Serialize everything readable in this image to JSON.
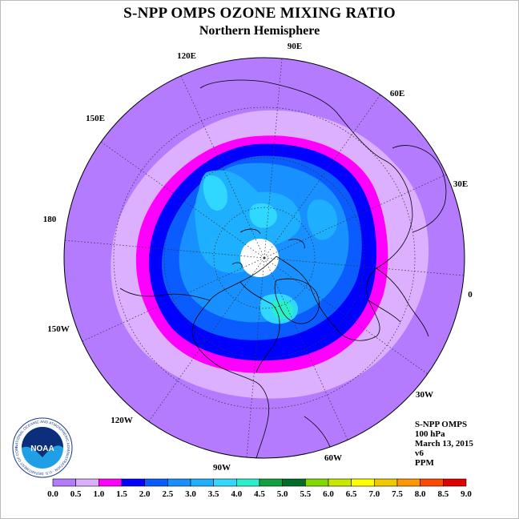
{
  "title": "S-NPP OMPS OZONE MIXING RATIO",
  "subtitle": "Northern Hemisphere",
  "longitude_labels": [
    "90E",
    "60E",
    "30E",
    "0",
    "30W",
    "60W",
    "90W",
    "120W",
    "150W",
    "180",
    "150E",
    "120E"
  ],
  "info": {
    "instrument": "S-NPP OMPS",
    "level": "100 hPa",
    "date": "March 13, 2015",
    "version": "v6",
    "units": "PPM"
  },
  "logo": {
    "text": "NOAA",
    "ring_text": "NATIONAL OCEANIC AND ATMOSPHERIC ADMINISTRATION · U.S. DEPARTMENT OF COMMERCE"
  },
  "colorbar": {
    "ticks": [
      "0.0",
      "0.5",
      "1.0",
      "1.5",
      "2.0",
      "2.5",
      "3.0",
      "3.5",
      "4.0",
      "4.5",
      "5.0",
      "5.5",
      "6.0",
      "6.5",
      "7.0",
      "7.5",
      "8.0",
      "8.5",
      "9.0"
    ],
    "colors": [
      "#b57bff",
      "#dcb0ff",
      "#ff00ff",
      "#0000ff",
      "#0a5cff",
      "#1890ff",
      "#1eb0ff",
      "#30d8ff",
      "#28f0c8",
      "#10a040",
      "#006c28",
      "#80d800",
      "#c8e800",
      "#ffff00",
      "#f0c800",
      "#ff9800",
      "#ff4800",
      "#e00000",
      "#8c5030"
    ]
  },
  "colors": {
    "outer_background": "#b57bff",
    "missing_data": "#ffffff"
  }
}
